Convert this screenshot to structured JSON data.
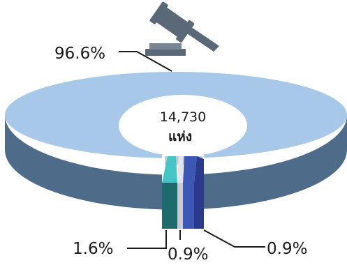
{
  "chart_data": {
    "type": "pie",
    "variant": "3d-donut-exploded",
    "center_label": {
      "value": "14,730",
      "unit": "แห่ง"
    },
    "slices": [
      {
        "label": "96.6%",
        "value": 96.6,
        "color": "#a7c8e8",
        "side_color": "#4f6b8a"
      },
      {
        "label": "1.6%",
        "value": 1.6,
        "color": "#47c4c6",
        "side_color": "#1e6b6e"
      },
      {
        "label": "0.9%",
        "value": 0.9,
        "color": "#e3e5ee",
        "side_color": "#c8cad4"
      },
      {
        "label": "0.9%",
        "value": 0.9,
        "color": "#3d57b5",
        "side_color": "#2b3a8a"
      }
    ]
  },
  "icons": {
    "top": "gavel-icon"
  }
}
